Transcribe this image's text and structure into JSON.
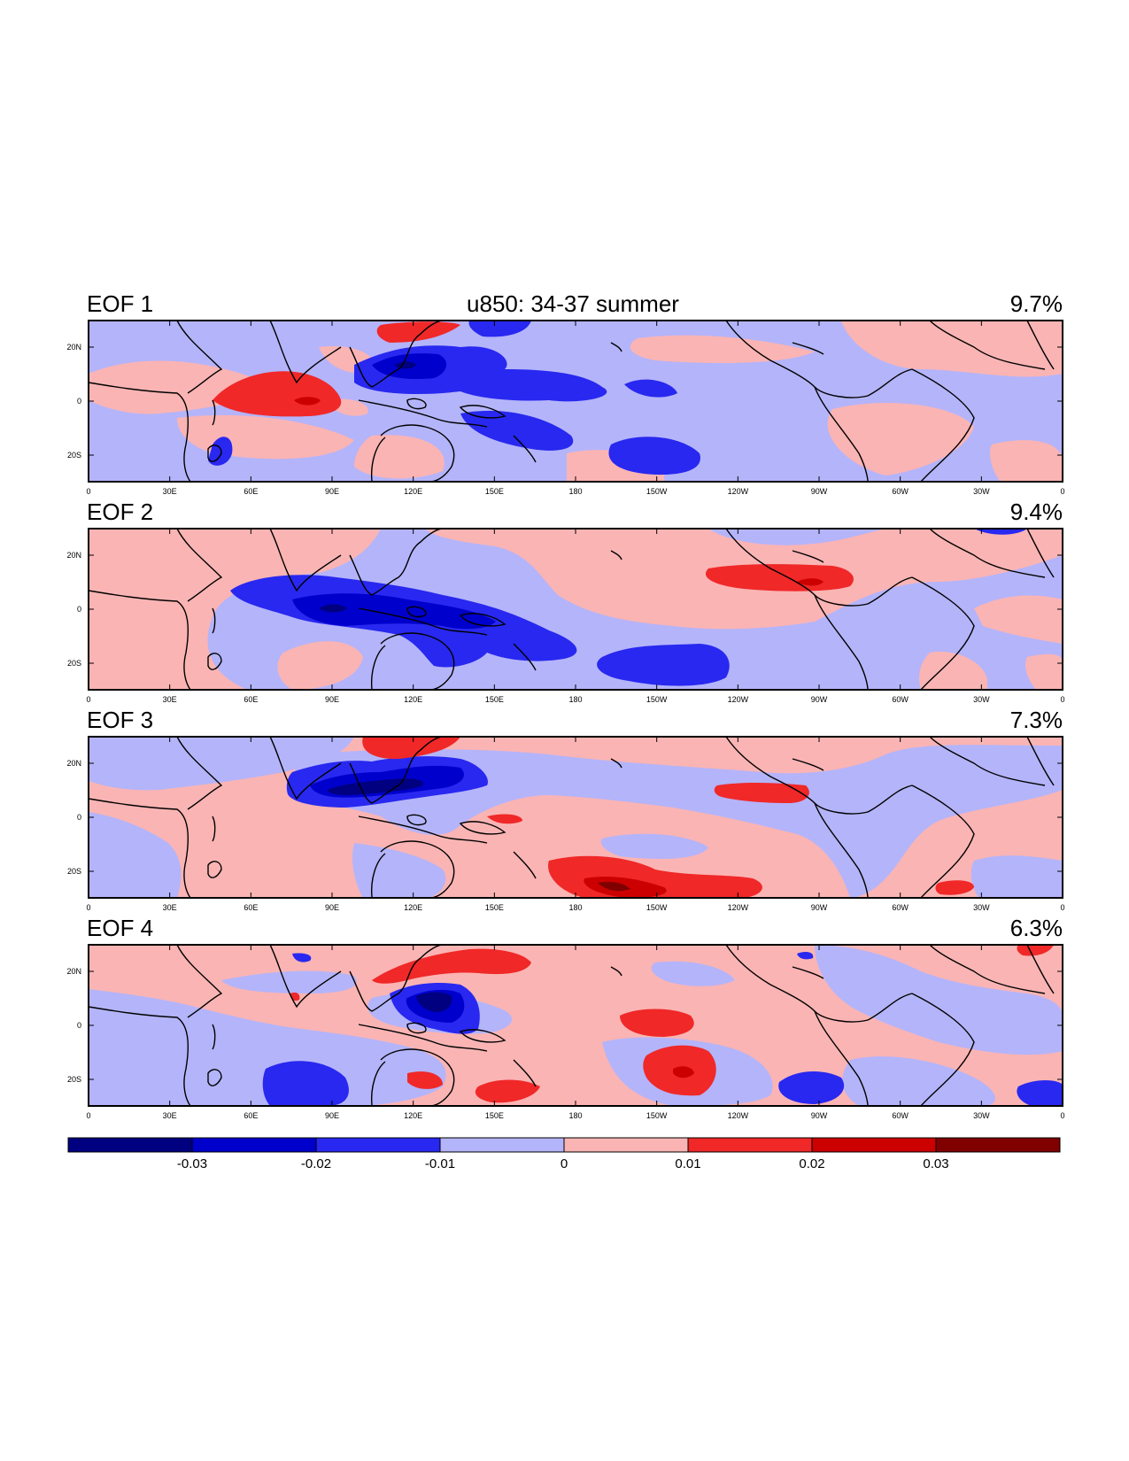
{
  "title": "u850: 34-37 summer",
  "panels": [
    {
      "label": "EOF 1",
      "variance": "9.7%"
    },
    {
      "label": "EOF 2",
      "variance": "9.4%"
    },
    {
      "label": "EOF 3",
      "variance": "7.3%"
    },
    {
      "label": "EOF 4",
      "variance": "6.3%"
    }
  ],
  "lat_ticks": [
    "20N",
    "0",
    "20S"
  ],
  "lon_ticks": [
    "0",
    "30E",
    "60E",
    "90E",
    "120E",
    "150E",
    "180",
    "150W",
    "120W",
    "90W",
    "60W",
    "30W",
    "0"
  ],
  "colorbar": {
    "labels": [
      "-0.03",
      "-0.02",
      "-0.01",
      "0",
      "0.01",
      "0.02",
      "0.03"
    ],
    "colors": [
      "#000080",
      "#0000cc",
      "#2828f0",
      "#b4b4fa",
      "#fab4b4",
      "#f02828",
      "#cc0000",
      "#800000"
    ]
  },
  "map_colors": {
    "neg_light": "#b4b4fa",
    "neg_mid": "#2828f0",
    "neg_dark": "#0000cc",
    "neg_darkest": "#000080",
    "pos_light": "#fab4b4",
    "pos_mid": "#f02828",
    "pos_dark": "#cc0000",
    "pos_darkest": "#800000"
  }
}
